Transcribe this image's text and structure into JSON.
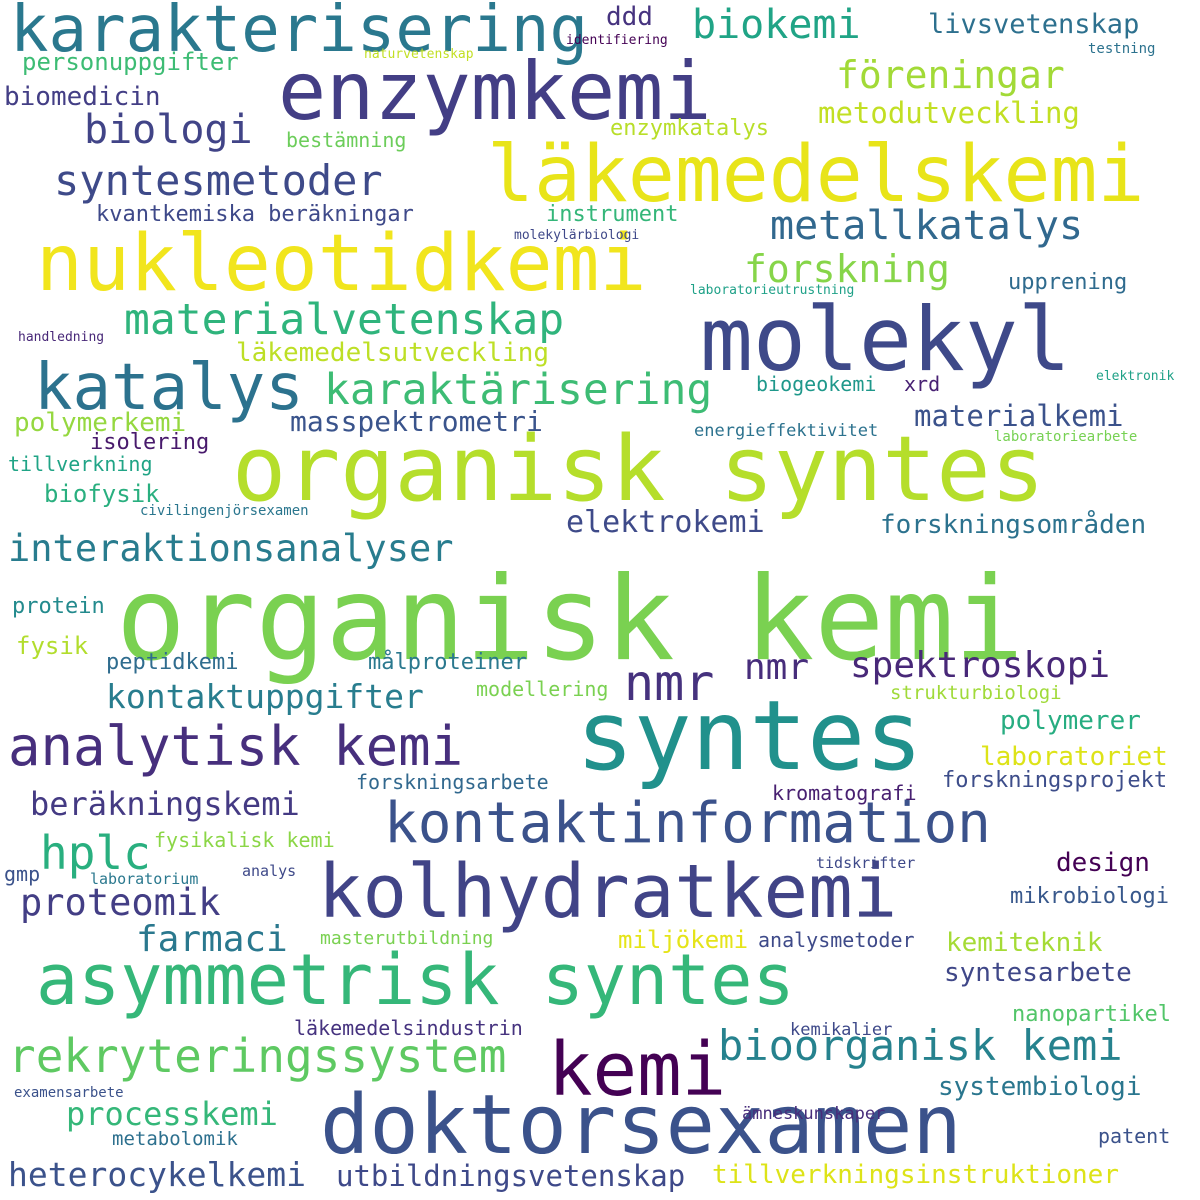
{
  "words": [
    {
      "text": "organisk kemi",
      "color": "#7ad151"
    },
    {
      "text": "organisk syntes",
      "color": "#b5de2b"
    },
    {
      "text": "syntes",
      "color": "#21918c"
    },
    {
      "text": "läkemedelskemi",
      "color": "#e8e419"
    },
    {
      "text": "nukleotidkemi",
      "color": "#f1e51d"
    },
    {
      "text": "enzymkemi",
      "color": "#433e85"
    },
    {
      "text": "molekyl",
      "color": "#3e4989"
    },
    {
      "text": "karakterisering",
      "color": "#2a788e"
    },
    {
      "text": "asymmetrisk syntes",
      "color": "#35b779"
    },
    {
      "text": "doktorsexamen",
      "color": "#3b528b"
    },
    {
      "text": "kolhydratkemi",
      "color": "#414487"
    },
    {
      "text": "kemi",
      "color": "#440154"
    },
    {
      "text": "katalys",
      "color": "#2c728e"
    },
    {
      "text": "kontaktinformation",
      "color": "#3b528b"
    },
    {
      "text": "analytisk kemi",
      "color": "#472f7d"
    },
    {
      "text": "nmr",
      "color": "#46327e"
    },
    {
      "text": "rekryteringssystem",
      "color": "#5ec962"
    },
    {
      "text": "bioorganisk kemi",
      "color": "#26828e"
    },
    {
      "text": "materialvetenskap",
      "color": "#2fb47c"
    },
    {
      "text": "karaktärisering",
      "color": "#3dbc74"
    },
    {
      "text": "syntesmetoder",
      "color": "#3e4a89"
    },
    {
      "text": "metallkatalys",
      "color": "#31688e"
    },
    {
      "text": "biokemi",
      "color": "#20a486"
    },
    {
      "text": "föreningar",
      "color": "#a2da37"
    },
    {
      "text": "biologi",
      "color": "#414487"
    },
    {
      "text": "forskning",
      "color": "#86d549"
    },
    {
      "text": "interaktionsanalyser",
      "color": "#287c8e"
    },
    {
      "text": "spektroskopi",
      "color": "#482878"
    },
    {
      "text": "nmr",
      "color": "#472d7b"
    },
    {
      "text": "elektrokemi",
      "color": "#3e4a89"
    },
    {
      "text": "kontaktuppgifter",
      "color": "#287d8e"
    },
    {
      "text": "beräkningskemi",
      "color": "#443a83"
    },
    {
      "text": "hplc",
      "color": "#29af7f"
    },
    {
      "text": "proteomik",
      "color": "#433e85"
    },
    {
      "text": "farmaci",
      "color": "#2a788e"
    },
    {
      "text": "heterocykelkemi",
      "color": "#3b528b"
    },
    {
      "text": "processkemi",
      "color": "#35b779"
    },
    {
      "text": "utbildningsvetenskap",
      "color": "#3e4989"
    },
    {
      "text": "tillverkningsinstruktioner",
      "color": "#dde318"
    },
    {
      "text": "syntesarbete",
      "color": "#3f4788"
    },
    {
      "text": "systembiologi",
      "color": "#2a768e"
    },
    {
      "text": "materialkemi",
      "color": "#3b528b"
    },
    {
      "text": "masspektrometri",
      "color": "#3a548c"
    },
    {
      "text": "forskningsområden",
      "color": "#2c728e"
    },
    {
      "text": "polymerkemi",
      "color": "#95d840"
    },
    {
      "text": "läkemedelsutveckling",
      "color": "#bddf26"
    },
    {
      "text": "metodutveckling",
      "color": "#c2df23"
    },
    {
      "text": "kvantkemiska beräkningar",
      "color": "#3e4989"
    },
    {
      "text": "livsvetenskap",
      "color": "#2d708e"
    },
    {
      "text": "personuppgifter",
      "color": "#3dbc74"
    },
    {
      "text": "biomedicin",
      "color": "#433e85"
    },
    {
      "text": "ddd",
      "color": "#46337f"
    },
    {
      "text": "enzymkatalys",
      "color": "#b8de29"
    },
    {
      "text": "instrument",
      "color": "#34b679"
    },
    {
      "text": "bestämning",
      "color": "#6ccd5a"
    },
    {
      "text": "biofysik",
      "color": "#29af7f"
    },
    {
      "text": "tillverkning",
      "color": "#20a486"
    },
    {
      "text": "isolering",
      "color": "#481a6c"
    },
    {
      "text": "protein",
      "color": "#238a8d"
    },
    {
      "text": "fysik",
      "color": "#b2dd2d"
    },
    {
      "text": "peptidkemi",
      "color": "#2f6c8e"
    },
    {
      "text": "målproteiner",
      "color": "#2a788e"
    },
    {
      "text": "modellering",
      "color": "#7ad151"
    },
    {
      "text": "strukturbiologi",
      "color": "#a0da39"
    },
    {
      "text": "polymerer",
      "color": "#27ad81"
    },
    {
      "text": "laboratoriet",
      "color": "#dde318"
    },
    {
      "text": "forskningsprojekt",
      "color": "#3d4d8a"
    },
    {
      "text": "forskningsarbete",
      "color": "#31688e"
    },
    {
      "text": "kromatografi",
      "color": "#482071"
    },
    {
      "text": "fysikalisk kemi",
      "color": "#8bd646"
    },
    {
      "text": "design",
      "color": "#440154"
    },
    {
      "text": "gmp",
      "color": "#3b528b"
    },
    {
      "text": "laboratorium",
      "color": "#2a788e"
    },
    {
      "text": "analys",
      "color": "#3e4989"
    },
    {
      "text": "tidskrifter",
      "color": "#3e4989"
    },
    {
      "text": "mikrobiologi",
      "color": "#38588c"
    },
    {
      "text": "masterutbildning",
      "color": "#7ad151"
    },
    {
      "text": "miljökemi",
      "color": "#e5e419"
    },
    {
      "text": "analysmetoder",
      "color": "#3e4a89"
    },
    {
      "text": "kemiteknik",
      "color": "#a5db36"
    },
    {
      "text": "nanopartikel",
      "color": "#52c569"
    },
    {
      "text": "läkemedelsindustrin",
      "color": "#46337f"
    },
    {
      "text": "kemikalier",
      "color": "#3e4989"
    },
    {
      "text": "ämneskunskaper",
      "color": "#472c7a"
    },
    {
      "text": "metabolomik",
      "color": "#2d708e"
    },
    {
      "text": "patent",
      "color": "#3b528b"
    },
    {
      "text": "examensarbete",
      "color": "#3b528b"
    },
    {
      "text": "civilingenjörsexamen",
      "color": "#2a768e"
    },
    {
      "text": "energieffektivitet",
      "color": "#2c728e"
    },
    {
      "text": "laboratoriearbete",
      "color": "#77d153"
    },
    {
      "text": "biogeokemi",
      "color": "#1f988b"
    },
    {
      "text": "xrd",
      "color": "#482173"
    },
    {
      "text": "elektronik",
      "color": "#1fa187"
    },
    {
      "text": "upprening",
      "color": "#2f6b8e"
    },
    {
      "text": "laboratorieutrustning",
      "color": "#1fa188"
    },
    {
      "text": "handledning",
      "color": "#482878"
    },
    {
      "text": "molekylärbiologi",
      "color": "#3f4889"
    },
    {
      "text": "identifiering",
      "color": "#440154"
    },
    {
      "text": "testning",
      "color": "#2c728e"
    },
    {
      "text": "naturvetenskap",
      "color": "#c2df23"
    }
  ]
}
